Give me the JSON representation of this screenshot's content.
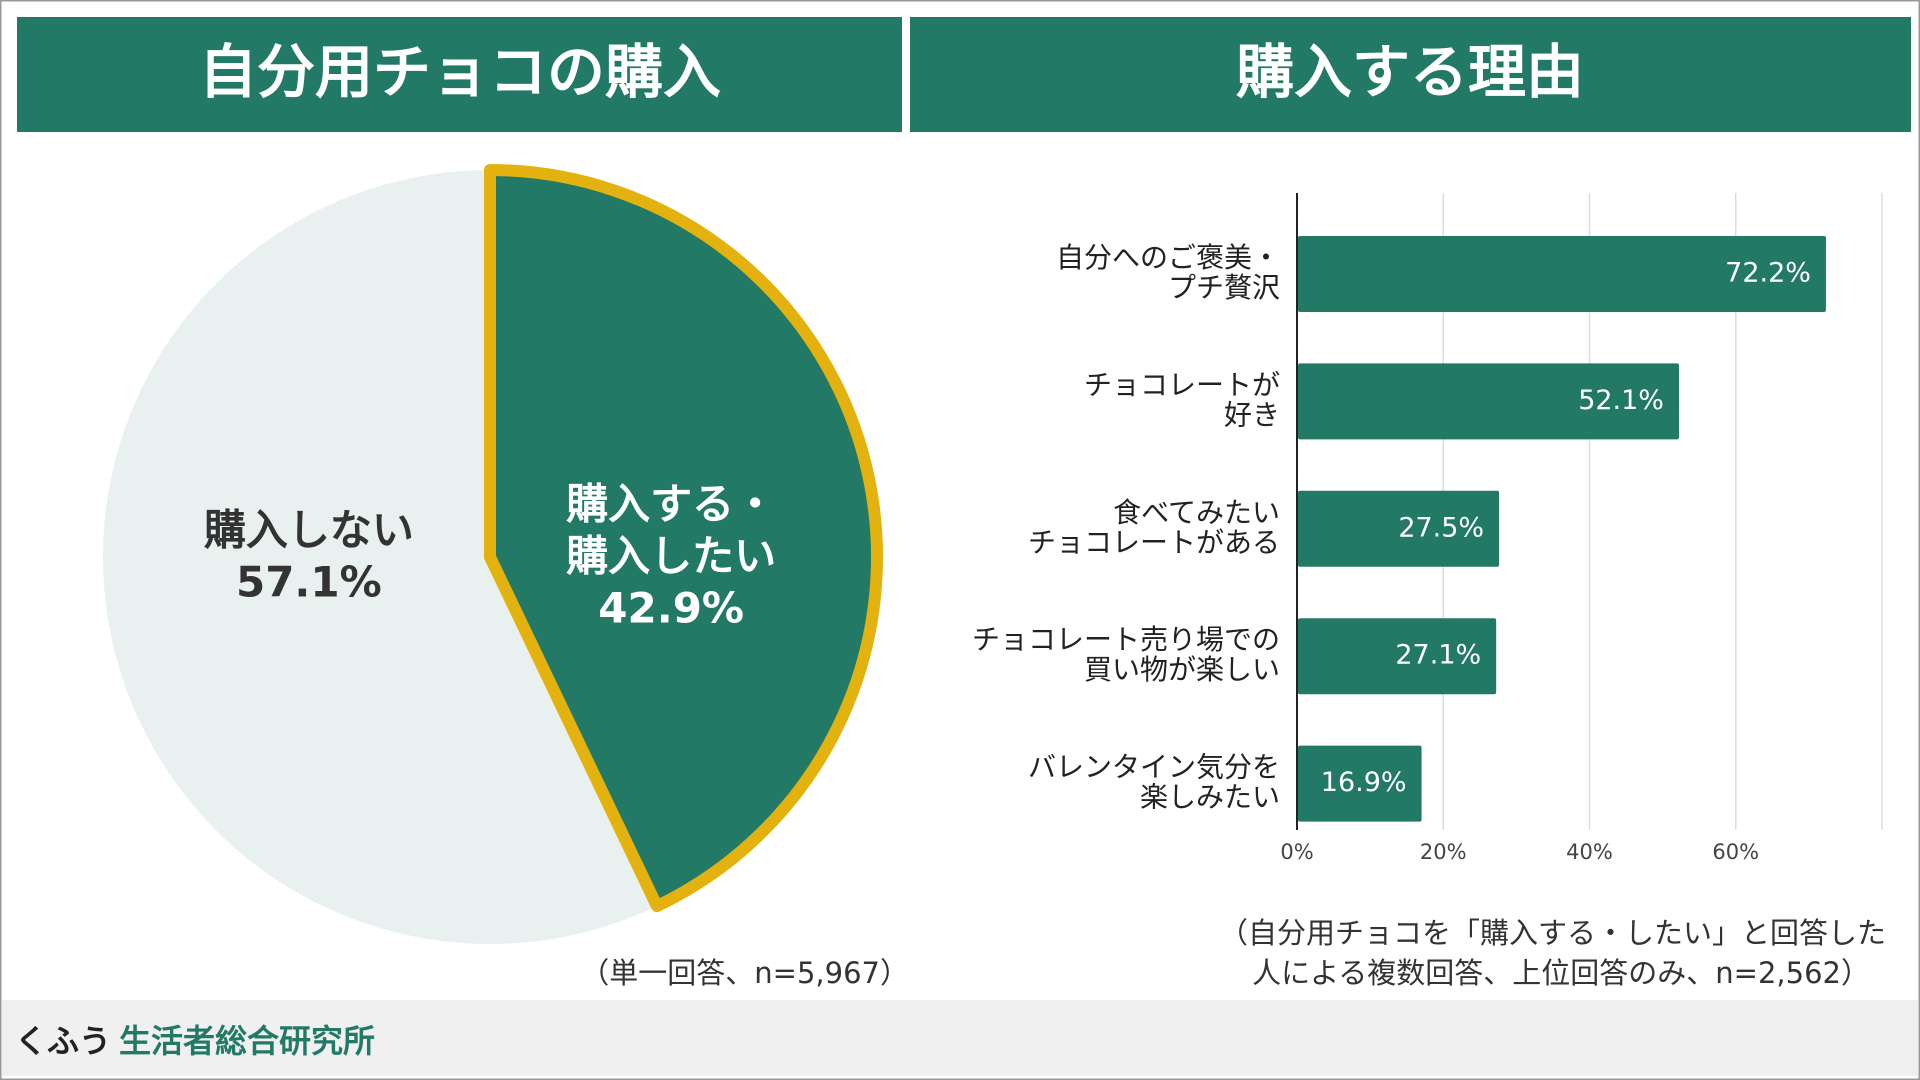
{
  "chart_data": [
    {
      "type": "pie",
      "title": "自分用チョコの購入",
      "labels": [
        [
          "購入する・",
          "購入したい"
        ],
        [
          "購入しない"
        ]
      ],
      "values": [
        42.9,
        57.1
      ],
      "value_labels": [
        "42.9%",
        "57.1%"
      ],
      "colors": [
        "#227a66",
        "#e8f1ef"
      ],
      "highlight_color": "#e3b20f",
      "note": "（単一回答、n=5,967）"
    },
    {
      "type": "barh",
      "title": "購入する理由",
      "categories": [
        [
          "自分へのご褒美・",
          "プチ贅沢"
        ],
        [
          "チョコレートが",
          "好き"
        ],
        [
          "食べてみたい",
          "チョコレートがある"
        ],
        [
          "チョコレート売り場での",
          "買い物が楽しい"
        ],
        [
          "バレンタイン気分を",
          "楽しみたい"
        ]
      ],
      "values": [
        72.2,
        52.1,
        27.5,
        27.1,
        16.9
      ],
      "value_labels": [
        "72.2%",
        "52.1%",
        "27.5%",
        "27.1%",
        "16.9%"
      ],
      "color": "#227a66",
      "xlim": [
        0,
        80
      ],
      "xticks": [
        {
          "value": 0,
          "label": "0%"
        },
        {
          "value": 20,
          "label": "20%"
        },
        {
          "value": 40,
          "label": "40%"
        },
        {
          "value": 60,
          "label": "60%"
        }
      ],
      "grid": true,
      "note": [
        "（自分用チョコを「購入する・したい」と回答した",
        "人による複数回答、上位回答のみ、n=2,562）"
      ]
    }
  ],
  "footer": {
    "brand": "くふう",
    "org": "生活者総合研究所"
  }
}
